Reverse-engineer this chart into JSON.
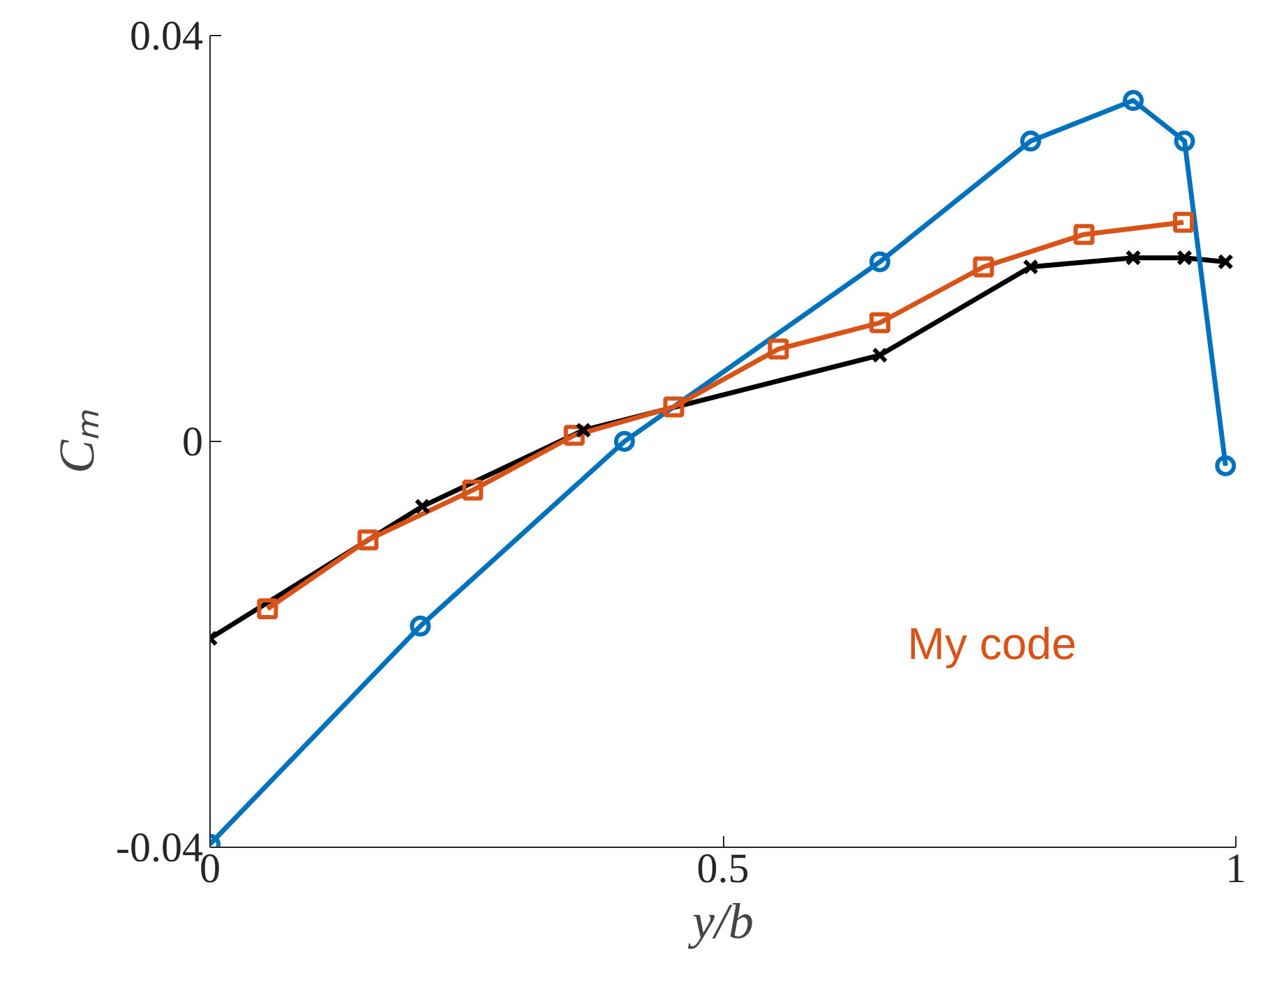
{
  "chart_data": {
    "type": "line",
    "xlabel": "y/b",
    "ylabel": "Cₘ",
    "xlim": [
      0,
      1
    ],
    "ylim": [
      -0.04,
      0.04
    ],
    "xticks": [
      0,
      0.5,
      1
    ],
    "yticks": [
      {
        "value": -0.04,
        "label": "-0.04"
      },
      0,
      {
        "value": 0.04,
        "label": "0.04"
      }
    ],
    "grid": false,
    "legend": "right",
    "series": [
      {
        "color": "#000000",
        "marker": "cross",
        "x": [
          0,
          0.207,
          0.364,
          0.653,
          0.8,
          0.9,
          0.95,
          0.99
        ],
        "values": [
          -0.0194,
          -0.0064,
          0.0011,
          0.0085,
          0.0172,
          0.0181,
          0.0181,
          0.0177
        ]
      },
      {
        "color": "#0072bd",
        "marker": "circle",
        "x": [
          0,
          0.205,
          0.404,
          0.653,
          0.8,
          0.9,
          0.95,
          0.99
        ],
        "values": [
          -0.0397,
          -0.0182,
          0,
          0.0177,
          0.0296,
          0.0336,
          0.0296,
          -0.0024
        ]
      },
      {
        "name": "My code",
        "color": "#d95319",
        "marker": "square",
        "x": [
          0.056,
          0.154,
          0.256,
          0.355,
          0.452,
          0.554,
          0.653,
          0.754,
          0.852,
          0.949
        ],
        "values": [
          -0.0165,
          -0.0097,
          -0.0048,
          0.0006,
          0.0034,
          0.0091,
          0.0117,
          0.0172,
          0.0204,
          0.0216
        ]
      }
    ]
  }
}
